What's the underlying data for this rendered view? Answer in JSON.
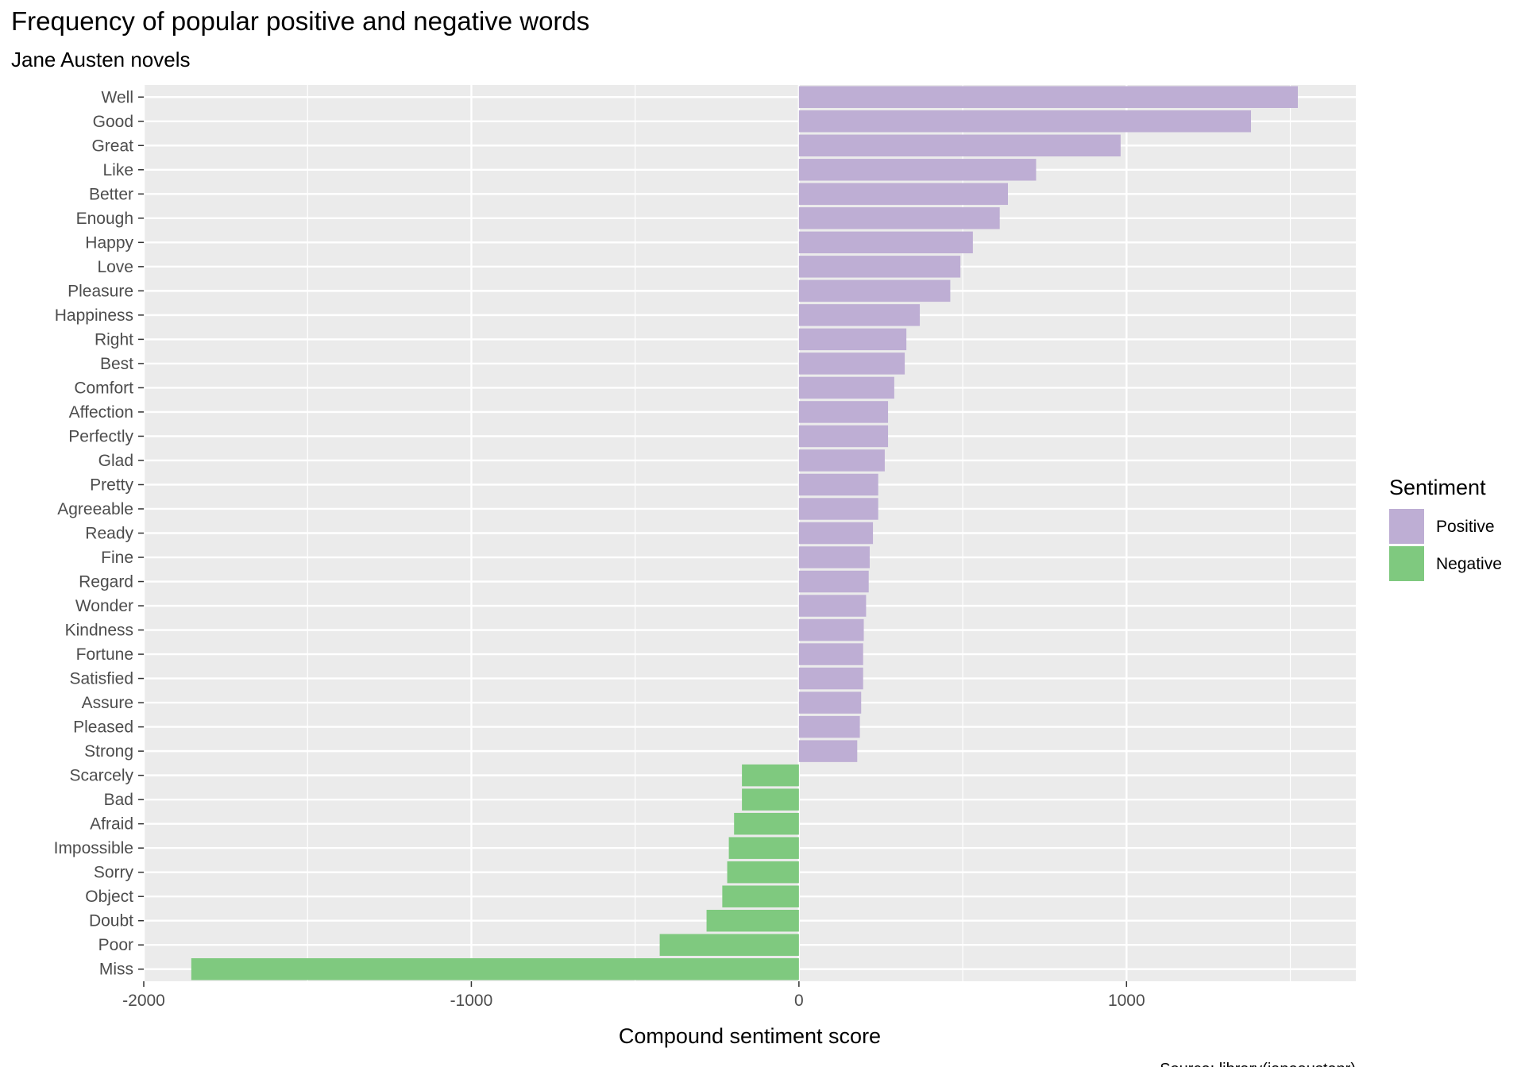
{
  "chart_data": {
    "type": "bar",
    "orientation": "horizontal",
    "title": "Frequency of popular positive and negative words",
    "subtitle": "Jane Austen novels",
    "xlabel": "Compound sentiment score",
    "ylabel": "",
    "caption": "Source: library(janeaustenr)",
    "xlim": [
      -2000,
      1700
    ],
    "xticks": [
      -2000,
      -1000,
      0,
      1000
    ],
    "xtick_labels": [
      "-2000",
      "-1000",
      "0",
      "1000"
    ],
    "grid": true,
    "legend": {
      "title": "Sentiment",
      "position": "right",
      "entries": [
        {
          "label": "Positive",
          "color": "#beaed4"
        },
        {
          "label": "Negative",
          "color": "#7fc97f"
        }
      ]
    },
    "categories": [
      "Well",
      "Good",
      "Great",
      "Like",
      "Better",
      "Enough",
      "Happy",
      "Love",
      "Pleasure",
      "Happiness",
      "Right",
      "Best",
      "Comfort",
      "Affection",
      "Perfectly",
      "Glad",
      "Pretty",
      "Agreeable",
      "Ready",
      "Fine",
      "Regard",
      "Wonder",
      "Kindness",
      "Fortune",
      "Satisfied",
      "Assure",
      "Pleased",
      "Strong",
      "Scarcely",
      "Bad",
      "Afraid",
      "Impossible",
      "Sorry",
      "Object",
      "Doubt",
      "Poor",
      "Miss"
    ],
    "values": [
      1523,
      1380,
      982,
      724,
      638,
      613,
      531,
      493,
      462,
      369,
      328,
      323,
      291,
      272,
      272,
      262,
      242,
      242,
      226,
      216,
      213,
      205,
      198,
      196,
      196,
      190,
      186,
      178,
      -174,
      -174,
      -198,
      -214,
      -219,
      -234,
      -282,
      -425,
      -1855
    ],
    "sentiment": [
      "Positive",
      "Positive",
      "Positive",
      "Positive",
      "Positive",
      "Positive",
      "Positive",
      "Positive",
      "Positive",
      "Positive",
      "Positive",
      "Positive",
      "Positive",
      "Positive",
      "Positive",
      "Positive",
      "Positive",
      "Positive",
      "Positive",
      "Positive",
      "Positive",
      "Positive",
      "Positive",
      "Positive",
      "Positive",
      "Positive",
      "Positive",
      "Positive",
      "Negative",
      "Negative",
      "Negative",
      "Negative",
      "Negative",
      "Negative",
      "Negative",
      "Negative",
      "Negative"
    ]
  }
}
